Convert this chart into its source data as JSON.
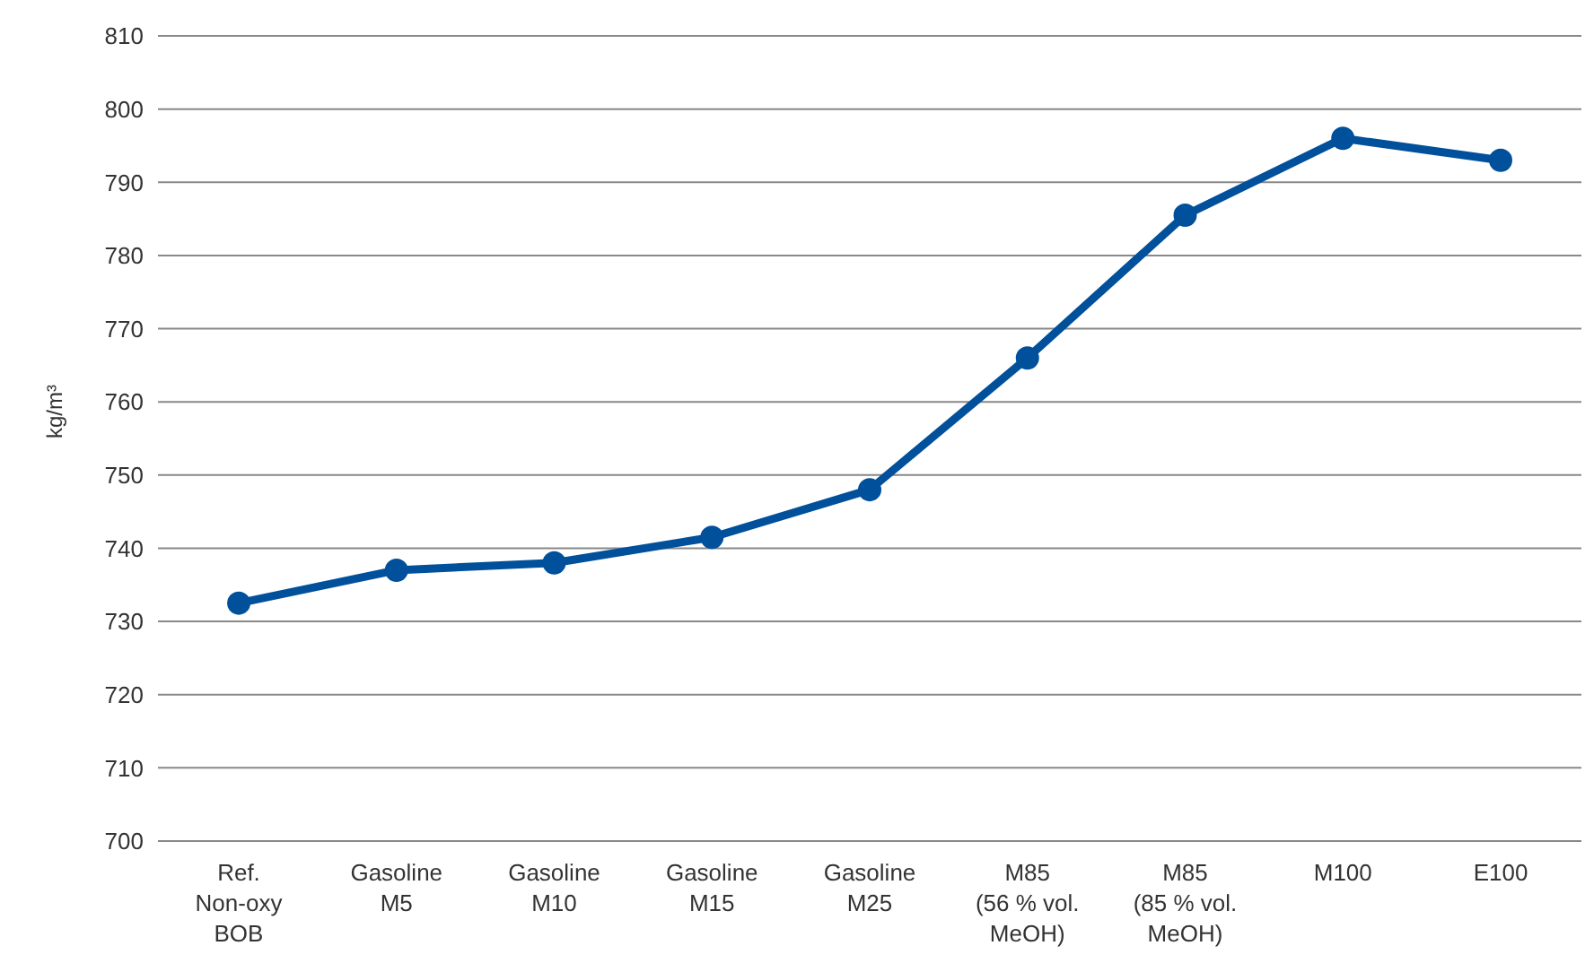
{
  "chart_data": {
    "type": "line",
    "ylabel": "kg/m³",
    "categories": [
      "Ref.\nNon-oxy\nBOB",
      "Gasoline\nM5",
      "Gasoline\nM10",
      "Gasoline\nM15",
      "Gasoline\nM25",
      "M85\n(56 % vol.\nMeOH)",
      "M85\n(85 % vol.\nMeOH)",
      "M100",
      "E100"
    ],
    "series": [
      {
        "color": "#00509b",
        "values": [
          732.5,
          737,
          738,
          741.5,
          748,
          766,
          785.5,
          796,
          793
        ]
      }
    ],
    "ylim": [
      700,
      810
    ],
    "yticks": [
      700,
      710,
      720,
      730,
      740,
      750,
      760,
      770,
      780,
      790,
      800,
      810
    ],
    "grid": "y",
    "legend": false,
    "marker": "circle",
    "line_style": "solid"
  }
}
